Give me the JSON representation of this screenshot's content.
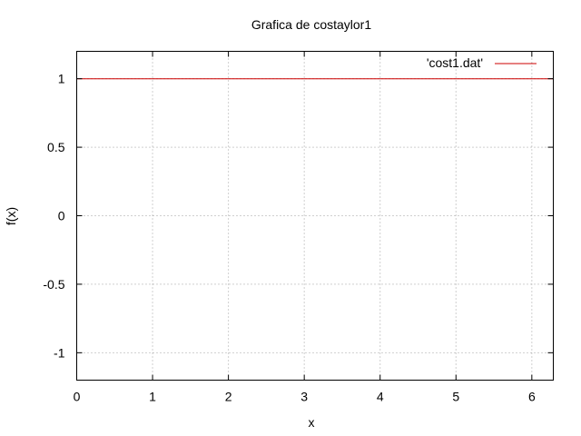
{
  "chart_data": {
    "type": "line",
    "title": "Grafica de costaylor1",
    "xlabel": "x",
    "ylabel": "f(x)",
    "xlim": [
      0,
      6.2832
    ],
    "ylim": [
      -1.2,
      1.2
    ],
    "x_ticks": [
      0,
      1,
      2,
      3,
      4,
      5,
      6
    ],
    "x_tick_labels": [
      "0",
      "1",
      "2",
      "3",
      "4",
      "5",
      "6"
    ],
    "y_ticks": [
      -1,
      -0.5,
      0,
      0.5,
      1
    ],
    "y_tick_labels": [
      "-1",
      "-0.5",
      "0",
      "0.5",
      "1"
    ],
    "grid": true,
    "legend_position": "top-right",
    "series": [
      {
        "name": "'cost1.dat'",
        "color": "#cc0000",
        "x": [
          0,
          6.2832
        ],
        "y": [
          1,
          1
        ]
      }
    ]
  }
}
